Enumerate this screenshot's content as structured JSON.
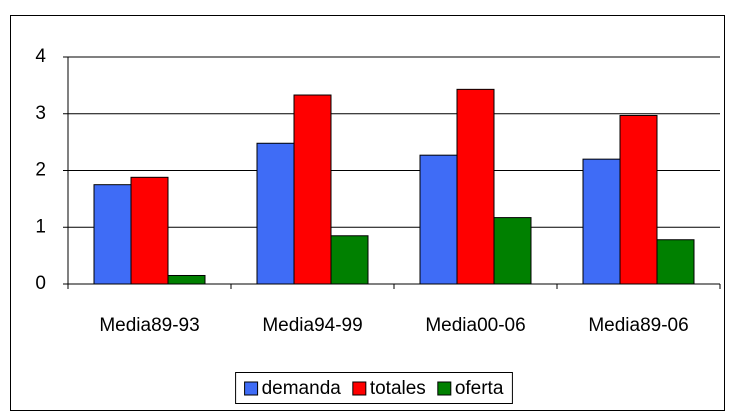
{
  "chart_data": {
    "type": "bar",
    "categories": [
      "Media89-93",
      "Media94-99",
      "Media00-06",
      "Media89-06"
    ],
    "series": [
      {
        "name": "demanda",
        "color": "#3f6cf6",
        "values": [
          1.75,
          2.48,
          2.27,
          2.2
        ]
      },
      {
        "name": "totales",
        "color": "#ff0000",
        "values": [
          1.88,
          3.33,
          3.43,
          2.97
        ]
      },
      {
        "name": "oferta",
        "color": "#008000",
        "values": [
          0.15,
          0.85,
          1.17,
          0.78
        ]
      }
    ],
    "ylim": [
      0,
      4
    ],
    "yticks": [
      0,
      1,
      2,
      3,
      4
    ],
    "grid": true,
    "legend": "bottom"
  }
}
